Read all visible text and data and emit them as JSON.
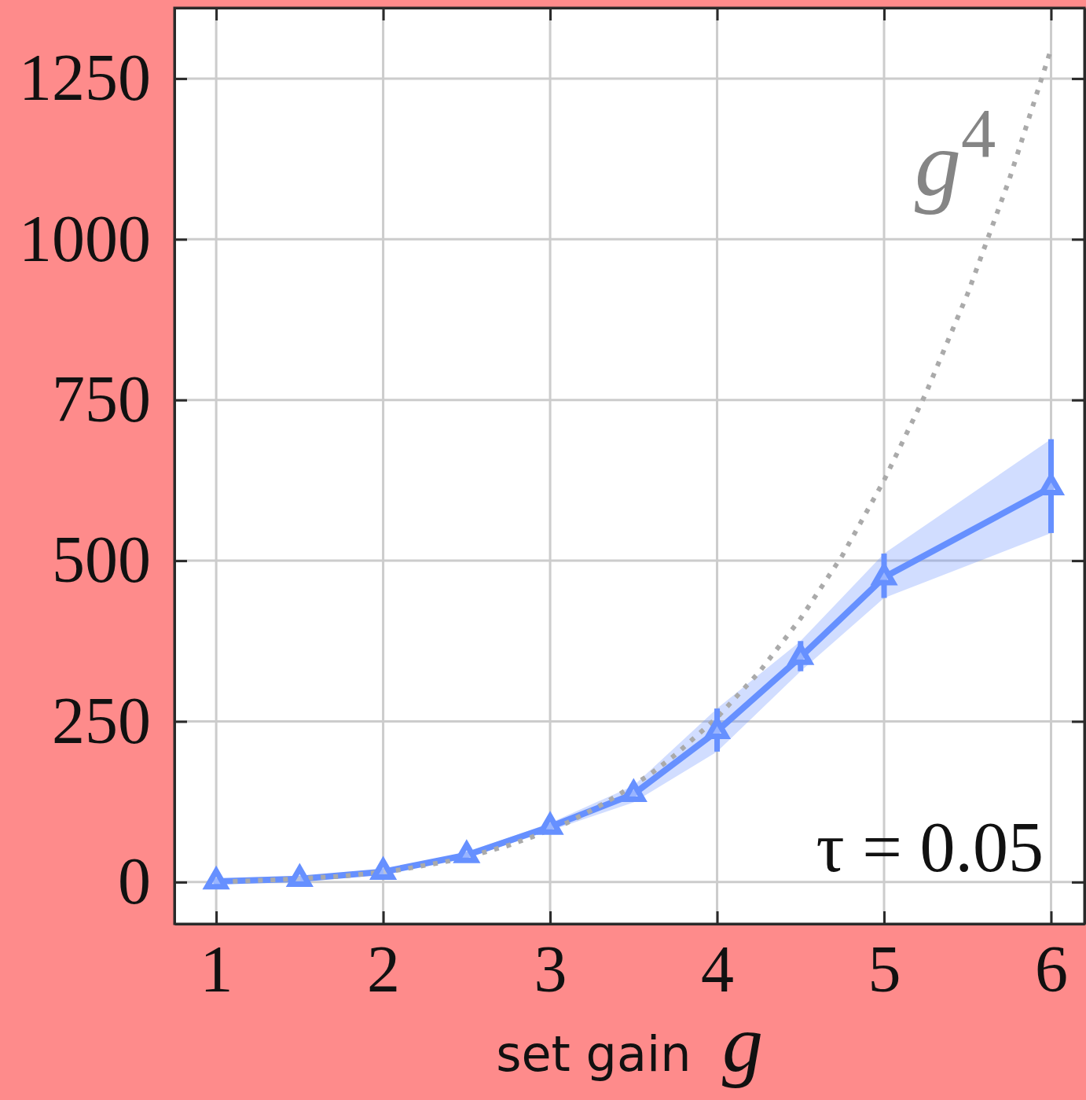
{
  "chart_data": {
    "type": "line",
    "xlabel": "set gain g",
    "xlim": [
      0.75,
      6.2
    ],
    "ylim": [
      -65,
      1360
    ],
    "xticks": [
      1,
      2,
      3,
      4,
      5,
      6
    ],
    "yticks": [
      0,
      250,
      500,
      750,
      1000,
      1250
    ],
    "grid": true,
    "series": [
      {
        "name": "g$^{4}$",
        "color": "#aaaaaa",
        "line_style": "dotted",
        "marker": "none",
        "x": [
          1.1,
          1.2,
          1.4,
          1.6,
          1.75,
          1.9,
          2.1,
          2.25,
          2.4,
          2.6,
          2.75,
          2.9,
          3.1,
          3.25,
          3.4,
          3.6,
          3.75,
          4,
          4.25,
          4.5,
          4.75,
          5,
          5.25,
          5.5,
          5.75,
          6
        ],
        "values": [
          1,
          2,
          4,
          7,
          9,
          13,
          19,
          26,
          33,
          46,
          57,
          71,
          92,
          112,
          134,
          168,
          198,
          256,
          326,
          410,
          508,
          625,
          760,
          915,
          1093,
          1296
        ]
      },
      {
        "color": "#6690ff",
        "line_style": "solid",
        "marker": "triangle",
        "x": [
          1,
          1.5,
          2,
          2.5,
          3,
          3.5,
          4,
          4.5,
          5,
          6
        ],
        "values": [
          1,
          5,
          16,
          42,
          86,
          137,
          235,
          350,
          474,
          614
        ],
        "errors": [
          null,
          null,
          null,
          null,
          null,
          null,
          [
            203,
            270
          ],
          [
            328,
            375
          ],
          [
            442,
            511
          ],
          [
            543,
            689
          ]
        ],
        "lower": [
          1,
          4,
          14,
          38,
          80,
          124,
          203,
          328,
          442,
          543
        ],
        "upper": [
          1,
          6,
          18,
          46,
          92,
          150,
          270,
          375,
          511,
          689
        ]
      }
    ],
    "annotations": [
      "τ = 0.05"
    ]
  }
}
